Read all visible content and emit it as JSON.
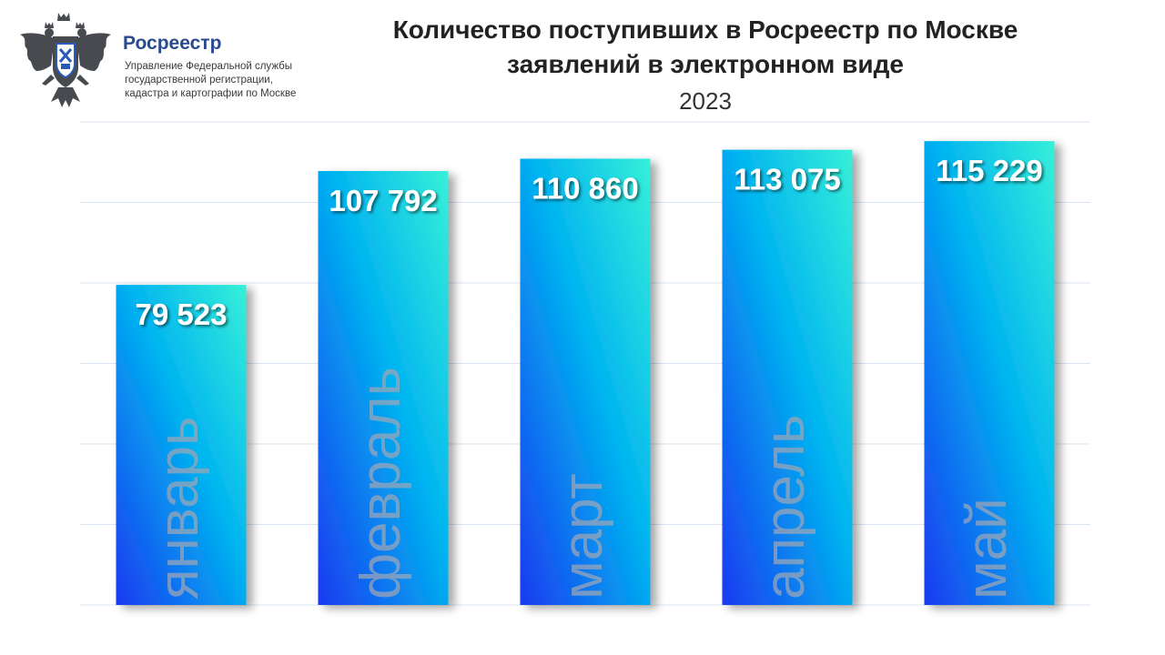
{
  "header": {
    "org_name": "Росреестр",
    "org_desc": [
      "Управление Федеральной службы",
      "государственной регистрации,",
      "кадастра и картографии по Москве"
    ]
  },
  "colors": {
    "bar_bottom": "#1a3af0",
    "bar_mid": "#00b4f0",
    "bar_top": "#36f0d8",
    "grid": "#d8e4f0",
    "value_label": "#ffffff",
    "category_label": "#9aa6b8"
  },
  "chart_data": {
    "type": "bar",
    "title": [
      "Количество поступивших в Росреестр по Москве",
      "заявлений в электронном виде"
    ],
    "subtitle": "2023",
    "categories": [
      "январь",
      "февраль",
      "март",
      "апрель",
      "май"
    ],
    "values": [
      79523,
      107792,
      110860,
      113075,
      115229
    ],
    "value_labels": [
      "79 523",
      "107 792",
      "110 860",
      "113 075",
      "115 229"
    ],
    "ylim": [
      0,
      120000
    ],
    "grid": true,
    "xlabel": "",
    "ylabel": ""
  }
}
